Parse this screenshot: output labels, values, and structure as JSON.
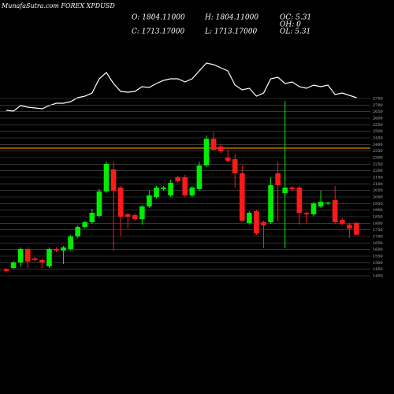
{
  "chart_data": [
    {
      "type": "line",
      "name": "indicator",
      "values": [
        10,
        9,
        16,
        14,
        13,
        12,
        16,
        19,
        19,
        21,
        26,
        28,
        32,
        50,
        58,
        44,
        34,
        33,
        34,
        40,
        39,
        44,
        48,
        50,
        50,
        46,
        50,
        60,
        70,
        68,
        64,
        60,
        42,
        36,
        38,
        28,
        32,
        50,
        52,
        44,
        46,
        40,
        38,
        42,
        40,
        42,
        30,
        32,
        29,
        26
      ],
      "ylim": [
        0,
        100
      ],
      "color": "#ffffff"
    },
    {
      "type": "candlestick",
      "title": "MunafaSutra.com FOREX XPDUSD",
      "info": [
        "O: 1804.11000",
        "H: 1804.11000",
        "OC: 5.31",
        "C: 1713.17000",
        "L: 1713.17000",
        "OH: 0",
        "OL: 5.31"
      ],
      "open": [
        1448,
        1460,
        1502,
        1604,
        1532,
        1520,
        1472,
        1604,
        1592,
        1604,
        1700,
        1772,
        1808,
        1856,
        2042,
        2210,
        2072,
        1868,
        1862,
        1832,
        1928,
        2000,
        2060,
        2012,
        2150,
        2150,
        2012,
        2060,
        2240,
        2444,
        2384,
        2300,
        2288,
        2180,
        1802,
        1892,
        1808,
        1808,
        2180,
        2030,
        2072,
        2072,
        1880,
        1868,
        1928,
        1952,
        1976,
        1826,
        1790,
        1804.11
      ],
      "high": [
        1460,
        1514,
        1616,
        1616,
        1544,
        1532,
        1616,
        1616,
        1628,
        1712,
        1784,
        1820,
        1910,
        2060,
        2270,
        2270,
        2084,
        1880,
        1874,
        1940,
        2048,
        2084,
        2084,
        2132,
        2162,
        2168,
        2084,
        2270,
        2468,
        2492,
        2402,
        2360,
        2330,
        2240,
        1892,
        1904,
        1820,
        2150,
        2270,
        2732,
        2084,
        2084,
        1892,
        1964,
        2048,
        1964,
        2084,
        1838,
        1802,
        1804.11
      ],
      "low": [
        1424,
        1448,
        1472,
        1460,
        1508,
        1460,
        1460,
        1580,
        1490,
        1592,
        1688,
        1760,
        1796,
        1844,
        2030,
        1592,
        1700,
        1760,
        1820,
        1790,
        1916,
        1988,
        2048,
        2000,
        2108,
        2000,
        2000,
        2048,
        2228,
        2348,
        2336,
        2264,
        2072,
        1808,
        1790,
        1712,
        1610,
        1796,
        1820,
        1610,
        2048,
        1790,
        1802,
        1856,
        1916,
        1940,
        1796,
        1784,
        1688,
        1713.17
      ],
      "close": [
        1436,
        1502,
        1604,
        1508,
        1520,
        1502,
        1604,
        1592,
        1616,
        1700,
        1772,
        1808,
        1880,
        2042,
        2252,
        2048,
        1850,
        1850,
        1832,
        1928,
        2012,
        2072,
        2072,
        2108,
        2120,
        2012,
        2072,
        2240,
        2444,
        2360,
        2348,
        2276,
        2180,
        1820,
        1880,
        1724,
        1784,
        2090,
        2090,
        2072,
        2060,
        1880,
        1868,
        1952,
        1964,
        1958,
        1808,
        1796,
        1760,
        1713.17
      ],
      "up_color": "#00ee00",
      "down_color": "#ff1a1a",
      "ylim": [
        1400,
        2750
      ],
      "yticks": [
        1400,
        1450,
        1500,
        1550,
        1600,
        1650,
        1700,
        1750,
        1800,
        1850,
        1900,
        1950,
        2000,
        2050,
        2100,
        2150,
        2200,
        2250,
        2300,
        2350,
        2400,
        2450,
        2500,
        2550,
        2600,
        2650,
        2700,
        2750
      ],
      "grid": true,
      "hline": 2372,
      "hline_color": "#e08a00"
    }
  ]
}
